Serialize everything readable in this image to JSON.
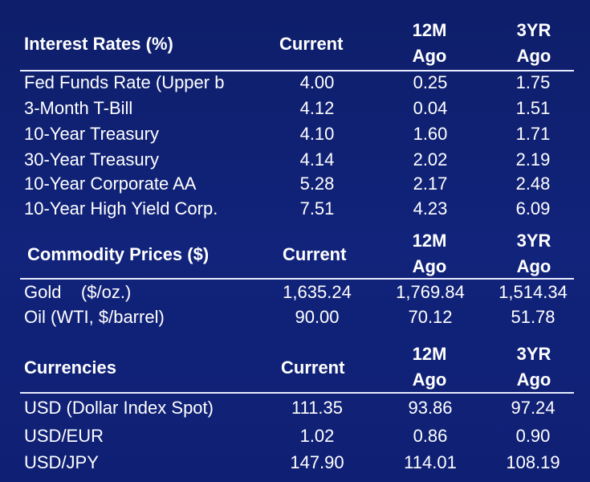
{
  "interest": {
    "title": "Interest Rates (%)",
    "col_current": "Current",
    "col_12m_top": "12M",
    "col_12m_bottom": "Ago",
    "col_3yr_top": "3YR",
    "col_3yr_bottom": "Ago",
    "rows": [
      {
        "label": "Fed Funds Rate (Upper b",
        "current": "4.00",
        "m12": "0.25",
        "yr3": "1.75"
      },
      {
        "label": "3-Month T-Bill",
        "current": "4.12",
        "m12": "0.04",
        "yr3": "1.51"
      },
      {
        "label": "10-Year Treasury",
        "current": "4.10",
        "m12": "1.60",
        "yr3": "1.71"
      },
      {
        "label": "30-Year Treasury",
        "current": "4.14",
        "m12": "2.02",
        "yr3": "2.19"
      },
      {
        "label": "10-Year Corporate AA",
        "current": "5.28",
        "m12": "2.17",
        "yr3": "2.48"
      },
      {
        "label": "10-Year High Yield Corp.",
        "current": "7.51",
        "m12": "4.23",
        "yr3": "6.09"
      }
    ]
  },
  "commodity": {
    "title": "Commodity Prices ($)",
    "col_current": "Current",
    "col_12m_top": "12M",
    "col_12m_bottom": "Ago",
    "col_3yr_top": "3YR",
    "col_3yr_bottom": "Ago",
    "rows": [
      {
        "label": "Gold    ($/oz.)",
        "current": "1,635.24",
        "m12": "1,769.84",
        "yr3": "1,514.34"
      },
      {
        "label": "Oil (WTI, $/barrel)",
        "current": "90.00",
        "m12": "70.12",
        "yr3": "51.78"
      }
    ]
  },
  "currency": {
    "title": "Currencies",
    "col_current": "Current",
    "col_12m_top": "12M",
    "col_12m_bottom": "Ago",
    "col_3yr_top": "3YR",
    "col_3yr_bottom": "Ago",
    "rows": [
      {
        "label": "USD (Dollar Index Spot)",
        "current": "111.35",
        "m12": "93.86",
        "yr3": "97.24"
      },
      {
        "label": "USD/EUR",
        "current": "1.02",
        "m12": "0.86",
        "yr3": "0.90"
      },
      {
        "label": "USD/JPY",
        "current": "147.90",
        "m12": "114.01",
        "yr3": "108.19"
      }
    ]
  },
  "colors": {
    "background": "#0f1f6b",
    "text": "#ffffff",
    "rule": "#e8ecff"
  }
}
